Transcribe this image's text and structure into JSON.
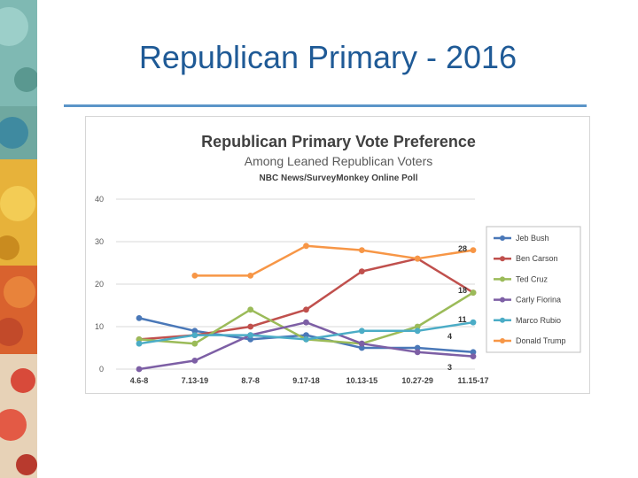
{
  "slide": {
    "title": "Republican Primary - 2016"
  },
  "chart_data": {
    "type": "line",
    "title": "Republican Primary Vote Preference",
    "subtitle": "Among Leaned Republican Voters",
    "source": "NBC News/SurveyMonkey Online Poll",
    "categories": [
      "4.6-8",
      "7.13-19",
      "8.7-8",
      "9.17-18",
      "10.13-15",
      "10.27-29",
      "11.15-17"
    ],
    "ylim": [
      0,
      40
    ],
    "yticks": [
      "0",
      "10",
      "20",
      "30",
      "40"
    ],
    "grid": true,
    "legend_position": "right",
    "series": [
      {
        "name": "Jeb Bush",
        "color": "#4a78b8",
        "values": [
          12,
          9,
          7,
          8,
          5,
          5,
          4
        ]
      },
      {
        "name": "Ben Carson",
        "color": "#c0504d",
        "values": [
          7,
          8,
          10,
          14,
          23,
          26,
          18
        ]
      },
      {
        "name": "Ted Cruz",
        "color": "#9bbb59",
        "values": [
          7,
          6,
          14,
          7,
          6,
          10,
          18
        ]
      },
      {
        "name": "Carly Fiorina",
        "color": "#7d5fa5",
        "values": [
          0,
          2,
          8,
          11,
          6,
          4,
          3
        ]
      },
      {
        "name": "Marco Rubio",
        "color": "#4bacc6",
        "values": [
          6,
          8,
          8,
          7,
          9,
          9,
          11
        ]
      },
      {
        "name": "Donald Trump",
        "color": "#f79646",
        "values": [
          null,
          22,
          22,
          29,
          28,
          26,
          28
        ]
      }
    ],
    "end_labels": [
      "28",
      "18",
      "11",
      "4",
      "3"
    ]
  }
}
